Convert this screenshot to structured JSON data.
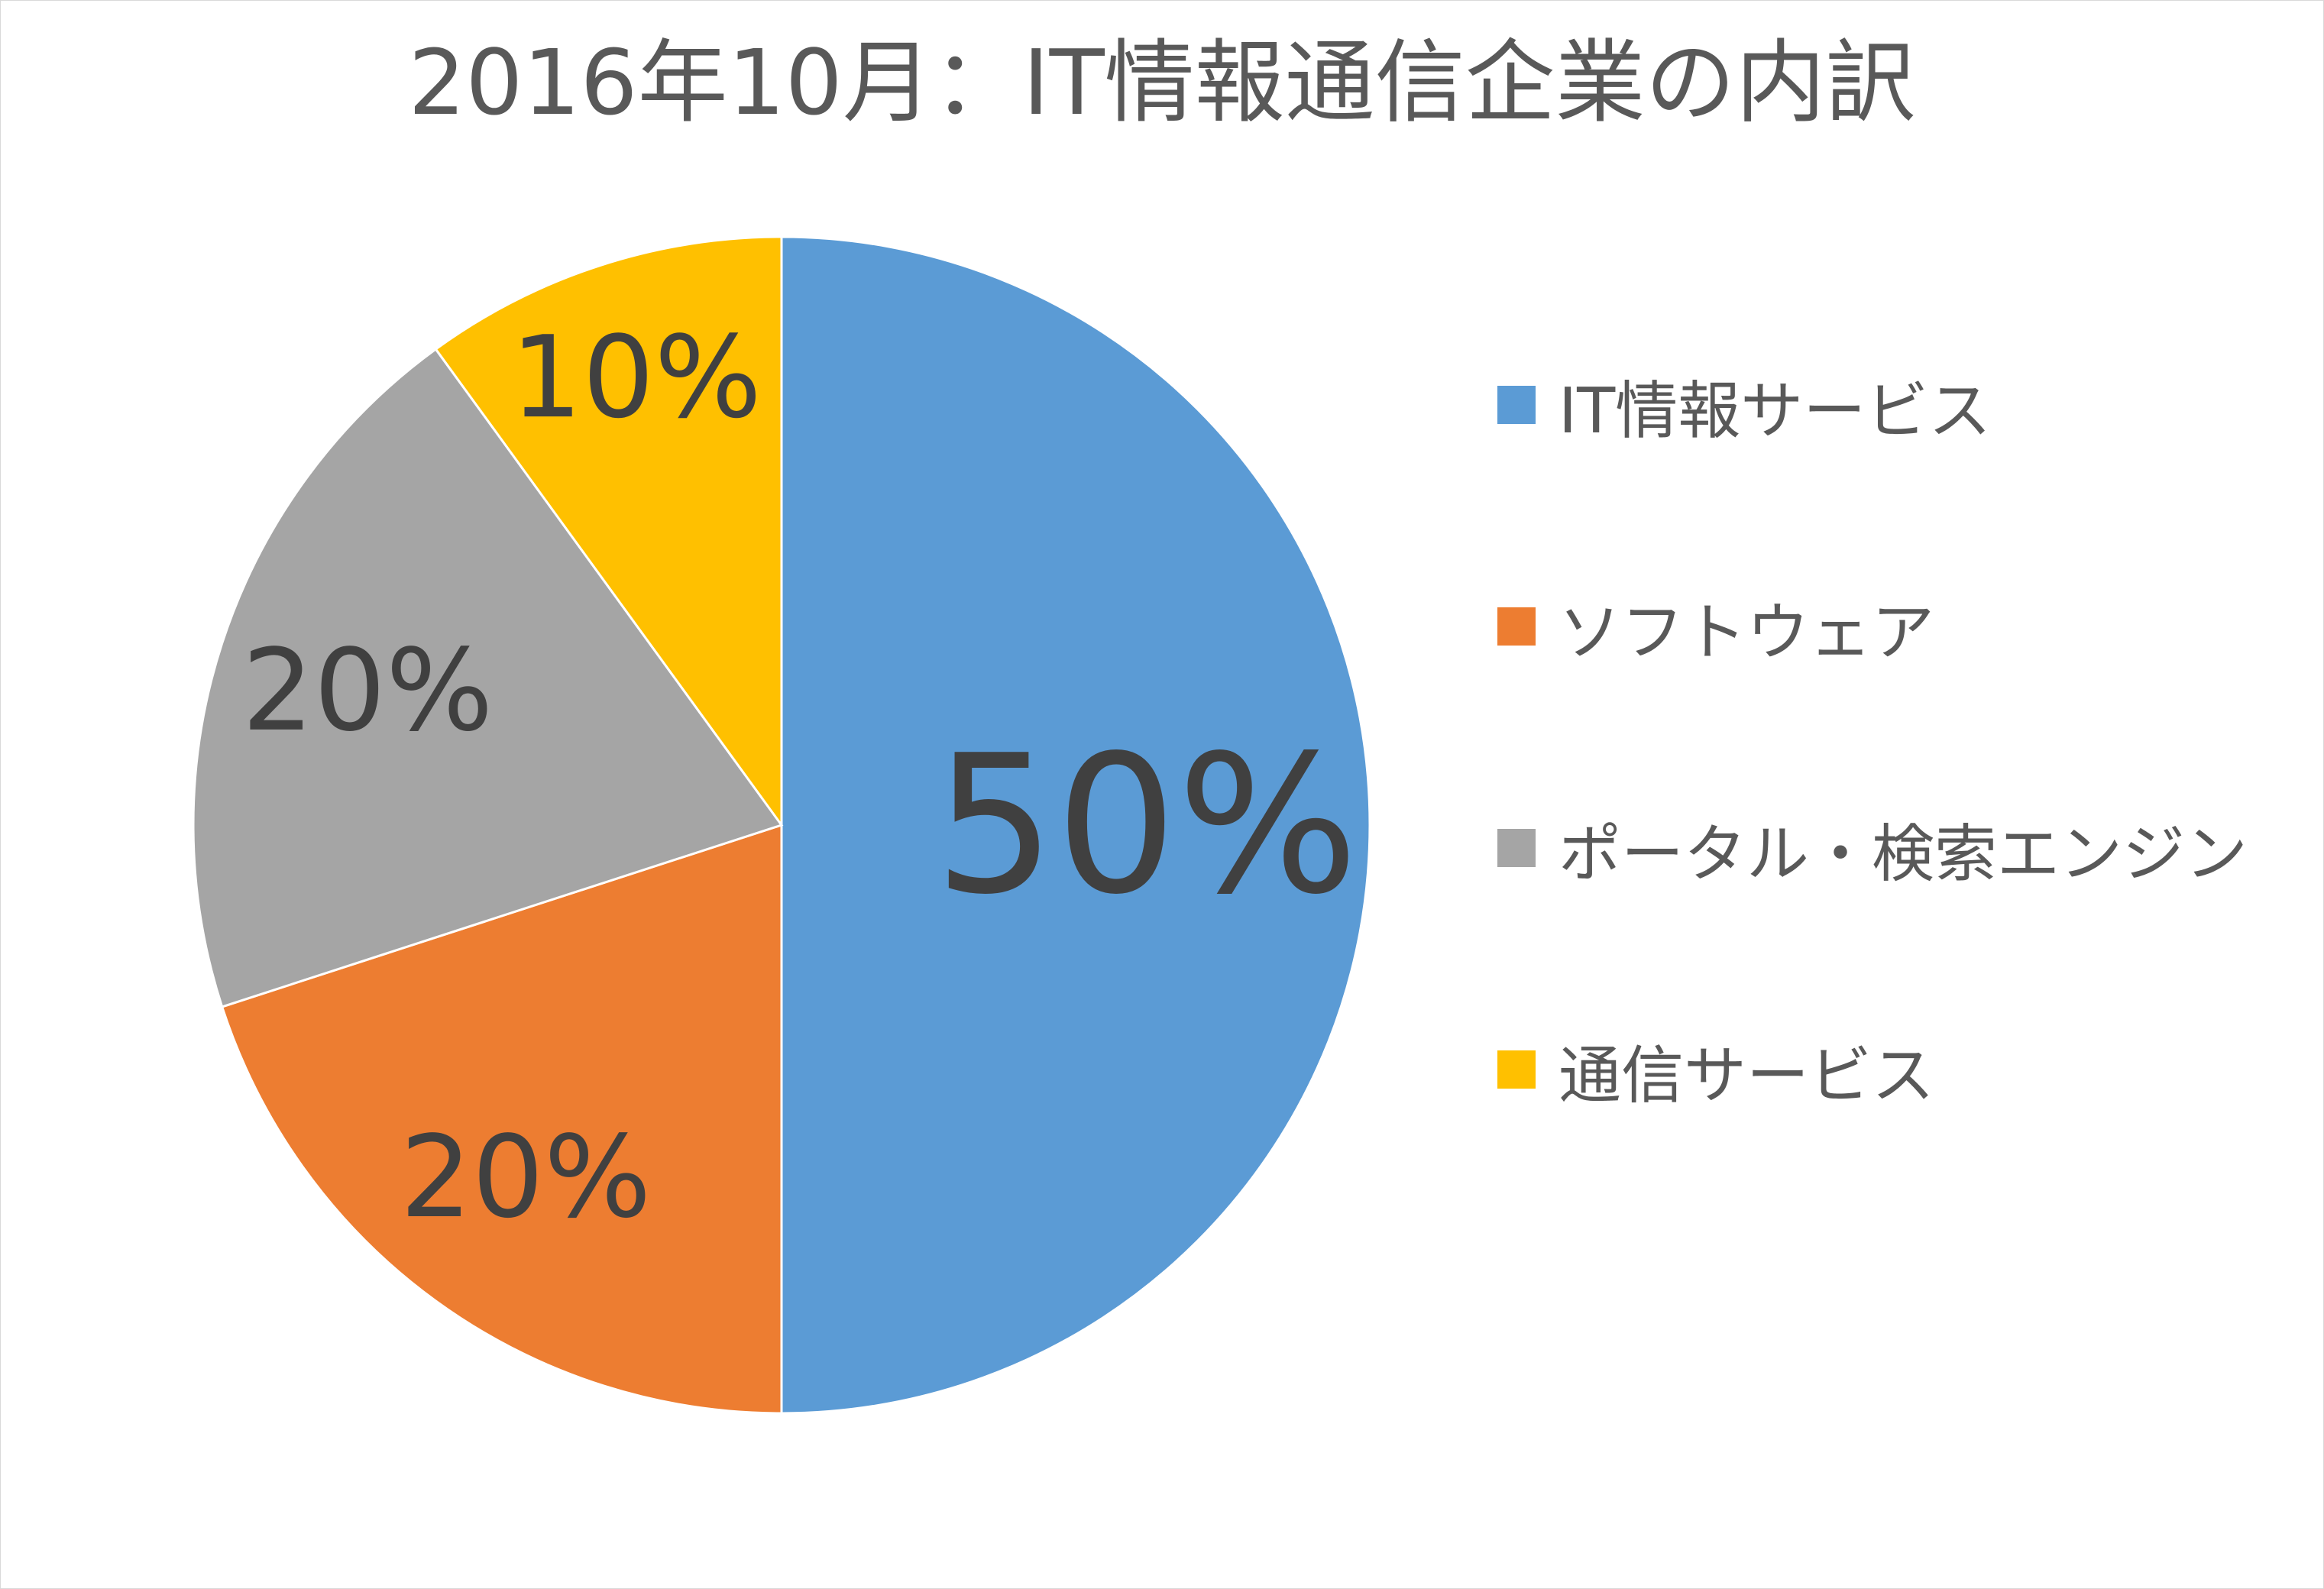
{
  "chart_data": {
    "type": "pie",
    "title": "2016年10月：IT情報通信企業の内訳",
    "categories": [
      "IT情報サービス",
      "ソフトウェア",
      "ポータル・検索エンジン",
      "通信サービス"
    ],
    "values": [
      50,
      20,
      20,
      10
    ],
    "data_labels": [
      "50%",
      "20%",
      "20%",
      "10%"
    ],
    "colors": [
      "#5b9bd5",
      "#ed7d31",
      "#a5a5a5",
      "#ffc000"
    ],
    "slice_border_color": "#ffffff",
    "label_color": "#404040",
    "legend_position": "right"
  }
}
